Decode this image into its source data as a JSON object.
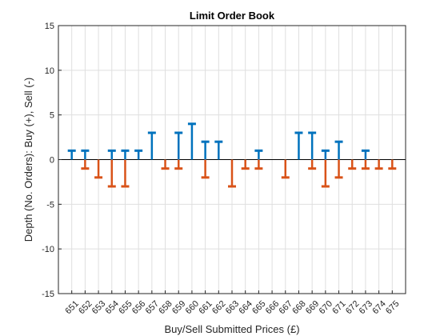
{
  "chart_data": {
    "type": "bar",
    "style": "stem",
    "title": "Limit Order Book",
    "xlabel": "Buy/Sell Submitted Prices (£)",
    "ylabel": "Depth (No. Orders): Buy (+), Sell (-)",
    "ylim": [
      -15,
      15
    ],
    "yticks": [
      -15,
      -10,
      -5,
      0,
      5,
      10,
      15
    ],
    "grid": true,
    "categories": [
      "651",
      "652",
      "653",
      "654",
      "655",
      "656",
      "657",
      "658",
      "659",
      "660",
      "661",
      "662",
      "663",
      "664",
      "665",
      "666",
      "667",
      "668",
      "669",
      "670",
      "671",
      "672",
      "673",
      "674",
      "675"
    ],
    "series": [
      {
        "values": [
          1,
          1,
          0,
          1,
          1,
          1,
          3,
          0,
          3,
          4,
          2,
          2,
          0,
          0,
          1,
          0,
          0,
          3,
          3,
          1,
          2,
          0,
          1,
          0,
          0
        ],
        "color": "#0072BD"
      },
      {
        "values": [
          0,
          -1,
          -2,
          -3,
          -3,
          0,
          0,
          -1,
          -1,
          0,
          -2,
          0,
          -3,
          -1,
          -1,
          0,
          -2,
          0,
          -1,
          -3,
          -2,
          -1,
          -1,
          -1,
          -1
        ],
        "color": "#D95319"
      }
    ]
  }
}
